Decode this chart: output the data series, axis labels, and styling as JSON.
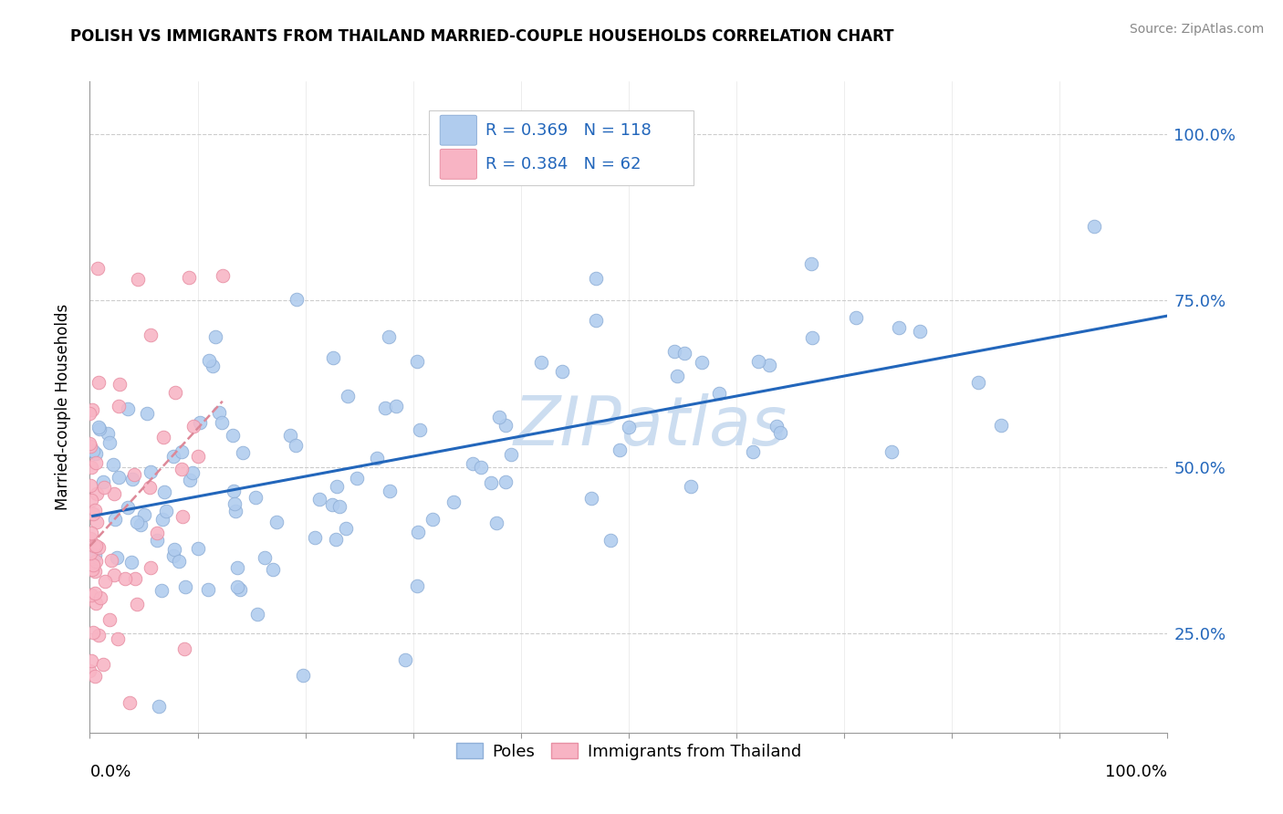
{
  "title": "POLISH VS IMMIGRANTS FROM THAILAND MARRIED-COUPLE HOUSEHOLDS CORRELATION CHART",
  "source": "Source: ZipAtlas.com",
  "ylabel": "Married-couple Households",
  "ytick_labels": [
    "25.0%",
    "50.0%",
    "75.0%",
    "100.0%"
  ],
  "ytick_vals": [
    0.25,
    0.5,
    0.75,
    1.0
  ],
  "poles_R": "0.369",
  "poles_N": "118",
  "thailand_R": "0.384",
  "thailand_N": "62",
  "poles_color": "#b0ccee",
  "poles_edge_color": "#90b0d8",
  "thailand_color": "#f8b4c4",
  "thailand_edge_color": "#e890a4",
  "poles_trend_color": "#2266bb",
  "thailand_trend_color": "#dd8898",
  "watermark_color": "#ccddf0",
  "xlim": [
    0.0,
    1.0
  ],
  "ylim": [
    0.1,
    1.08
  ]
}
